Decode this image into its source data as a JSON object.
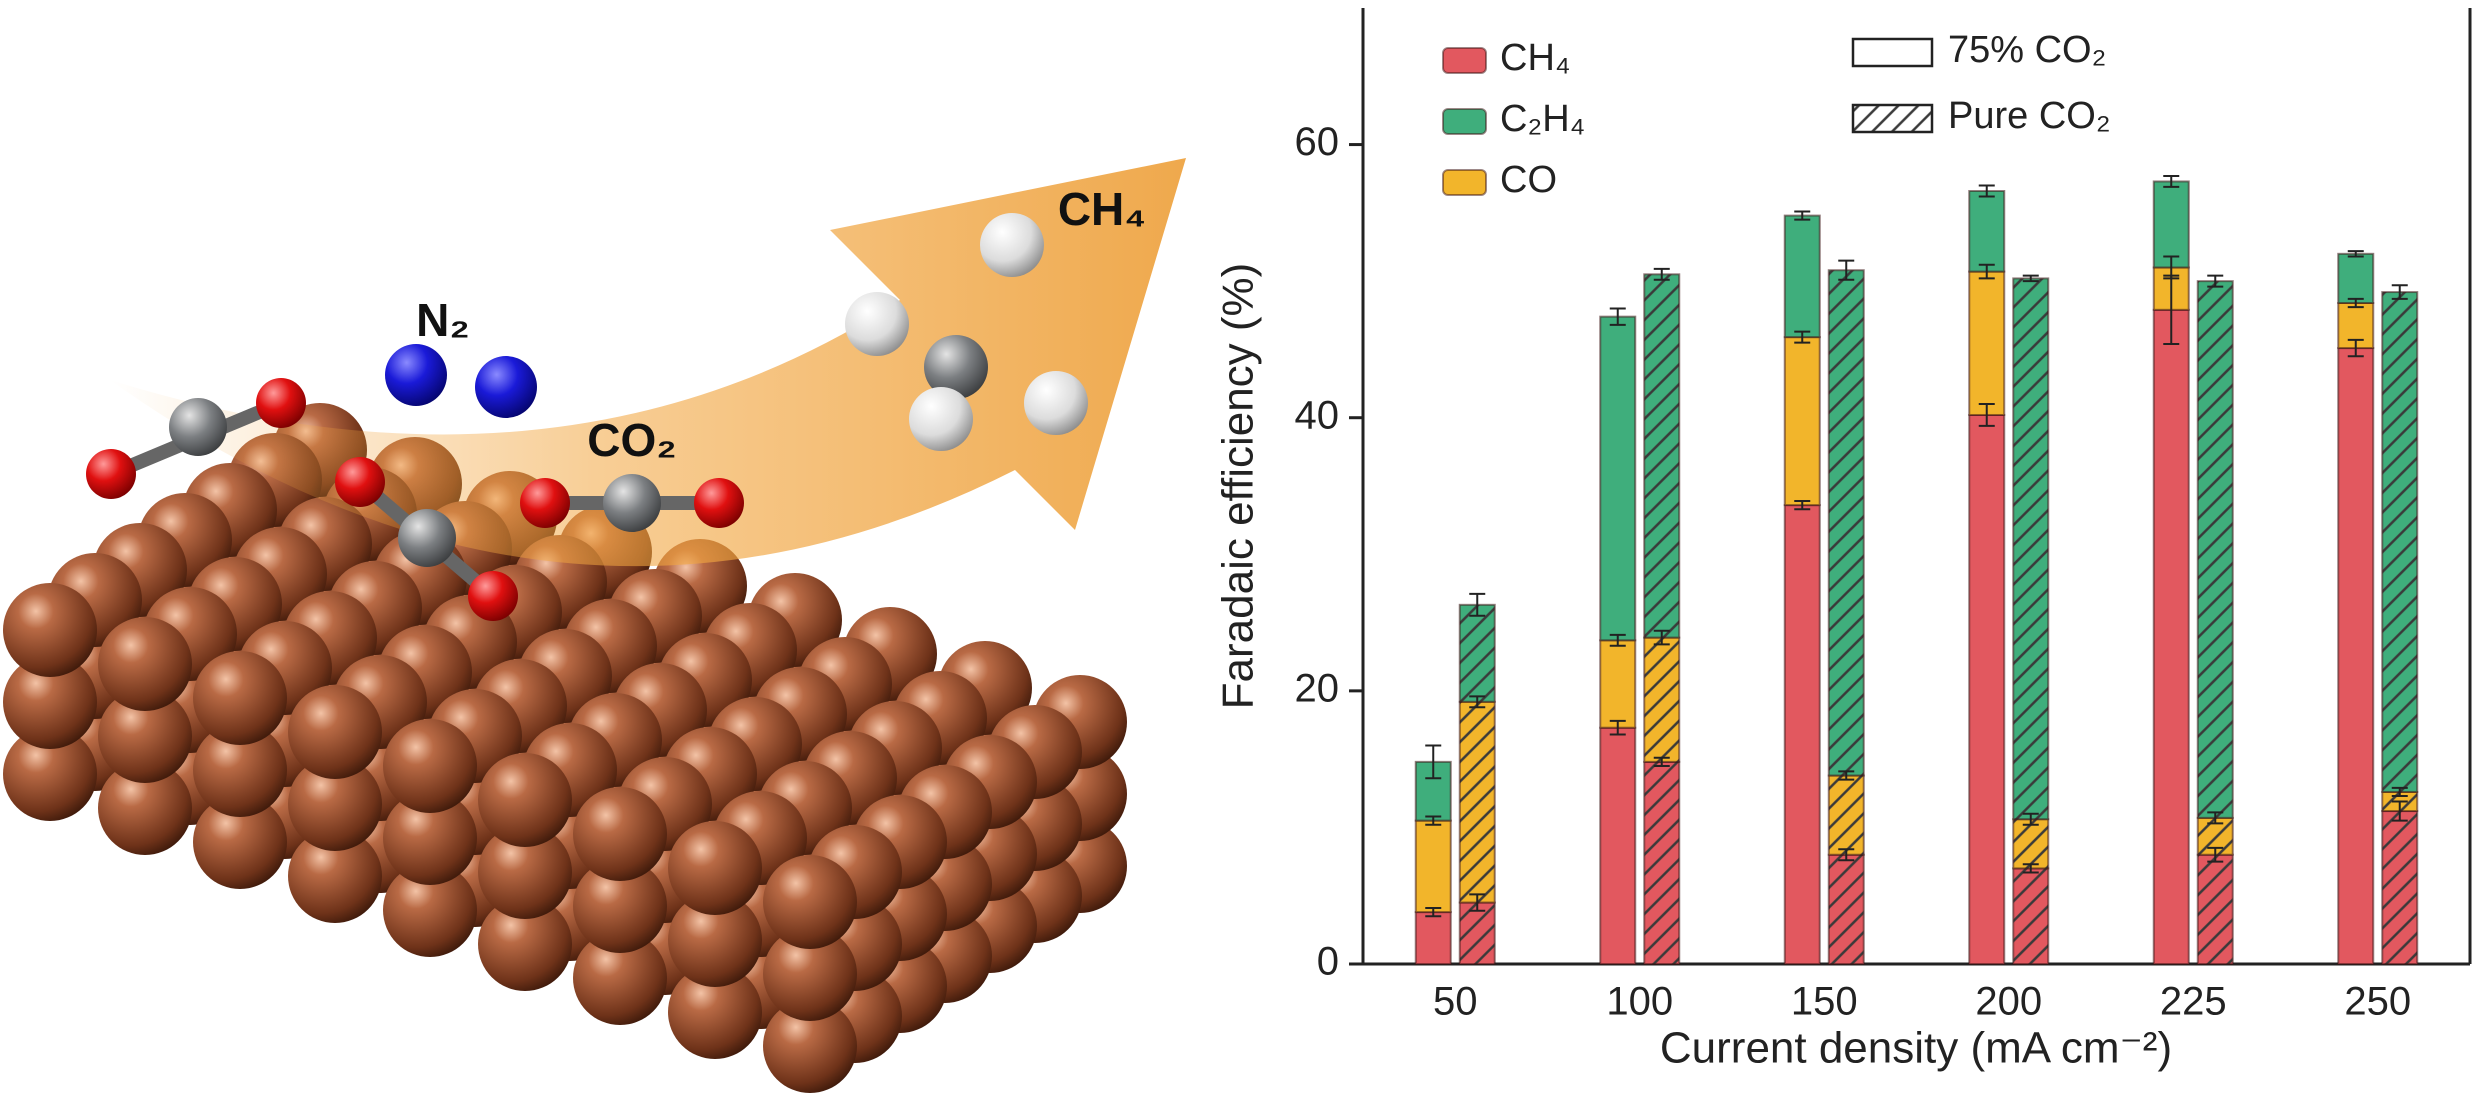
{
  "illustration": {
    "labels": [
      "N₂",
      "CO₂",
      "CH₄"
    ]
  },
  "chart_data": {
    "type": "bar",
    "categories": [
      "50",
      "100",
      "150",
      "200",
      "225",
      "250"
    ],
    "xlabel": "Current density (mA cm⁻²)",
    "ylabel": "Faradaic efficiency (%)",
    "ylim": [
      0,
      70
    ],
    "yticks": [
      0,
      20,
      40,
      60
    ],
    "conditions": [
      {
        "name": "75% CO₂",
        "hatch": false
      },
      {
        "name": "Pure CO₂",
        "hatch": true
      }
    ],
    "series": [
      {
        "name": "CH₄",
        "color": "#e2585f",
        "values": [
          [
            3.8,
            17.3,
            33.6,
            40.2,
            47.9,
            45.1
          ],
          [
            4.5,
            14.8,
            8.0,
            7.0,
            8.0,
            11.2
          ]
        ],
        "errors": [
          [
            0.3,
            0.5,
            0.3,
            0.8,
            2.5,
            0.6
          ],
          [
            0.6,
            0.3,
            0.4,
            0.3,
            0.5,
            0.7
          ]
        ]
      },
      {
        "name": "CO",
        "color": "#f2b52b",
        "values": [
          [
            6.7,
            6.4,
            12.3,
            10.5,
            3.1,
            3.3
          ],
          [
            14.7,
            9.1,
            5.8,
            3.6,
            2.7,
            1.4
          ]
        ],
        "errors": [
          [
            0.3,
            0.4,
            0.4,
            0.5,
            0.8,
            0.3
          ],
          [
            0.4,
            0.5,
            0.3,
            0.4,
            0.4,
            0.3
          ]
        ]
      },
      {
        "name": "C₂H₄",
        "color": "#3fae7c",
        "values": [
          [
            4.3,
            23.7,
            8.9,
            5.9,
            6.3,
            3.6
          ],
          [
            7.1,
            26.6,
            37.0,
            39.6,
            39.3,
            36.6
          ]
        ],
        "errors": [
          [
            1.2,
            0.6,
            0.3,
            0.4,
            0.4,
            0.2
          ],
          [
            0.8,
            0.4,
            0.7,
            0.2,
            0.4,
            0.5
          ]
        ]
      }
    ]
  }
}
